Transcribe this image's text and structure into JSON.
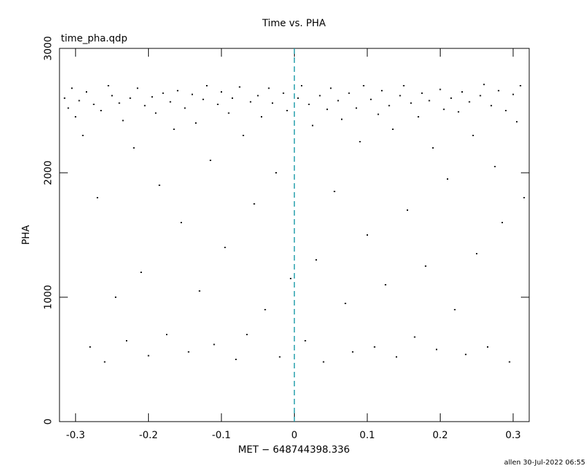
{
  "chart_data": {
    "type": "scatter",
    "title": "Time vs. PHA",
    "subtitle": "time_pha.qdp",
    "x_label": "MET − 648744398.336",
    "y_label": "PHA",
    "footer": "allen 30-Jul-2022 06:55",
    "color": "#000000",
    "vline": 0,
    "vline_color": "#1a9aa8",
    "xlim": [
      -0.322,
      0.322
    ],
    "ylim": [
      0,
      3000
    ],
    "xticks": [
      -0.3,
      -0.2,
      -0.1,
      0,
      0.1,
      0.2,
      0.3
    ],
    "yticks": [
      0,
      1000,
      2000,
      3000
    ],
    "x": [
      -0.315,
      -0.31,
      -0.305,
      -0.3,
      -0.295,
      -0.29,
      -0.285,
      -0.28,
      -0.275,
      -0.27,
      -0.265,
      -0.26,
      -0.255,
      -0.25,
      -0.245,
      -0.24,
      -0.235,
      -0.23,
      -0.225,
      -0.22,
      -0.215,
      -0.21,
      -0.205,
      -0.2,
      -0.195,
      -0.19,
      -0.185,
      -0.18,
      -0.175,
      -0.17,
      -0.165,
      -0.16,
      -0.155,
      -0.15,
      -0.145,
      -0.14,
      -0.135,
      -0.13,
      -0.125,
      -0.12,
      -0.115,
      -0.11,
      -0.105,
      -0.1,
      -0.095,
      -0.09,
      -0.085,
      -0.08,
      -0.075,
      -0.07,
      -0.065,
      -0.06,
      -0.055,
      -0.05,
      -0.045,
      -0.04,
      -0.035,
      -0.03,
      -0.025,
      -0.02,
      -0.015,
      -0.01,
      -0.005,
      0.005,
      0.01,
      0.015,
      0.02,
      0.025,
      0.03,
      0.035,
      0.04,
      0.045,
      0.05,
      0.055,
      0.06,
      0.065,
      0.07,
      0.075,
      0.08,
      0.085,
      0.09,
      0.095,
      0.1,
      0.105,
      0.11,
      0.115,
      0.12,
      0.125,
      0.13,
      0.135,
      0.14,
      0.145,
      0.15,
      0.155,
      0.16,
      0.165,
      0.17,
      0.175,
      0.18,
      0.185,
      0.19,
      0.195,
      0.2,
      0.205,
      0.21,
      0.215,
      0.22,
      0.225,
      0.23,
      0.235,
      0.24,
      0.245,
      0.25,
      0.255,
      0.26,
      0.265,
      0.27,
      0.275,
      0.28,
      0.285,
      0.29,
      0.295,
      0.3,
      0.305,
      0.31,
      0.315
    ],
    "values": [
      2600,
      2520,
      2680,
      2450,
      2580,
      2300,
      2650,
      600,
      2550,
      1800,
      2500,
      480,
      2700,
      2620,
      1000,
      2560,
      2420,
      650,
      2600,
      2200,
      2680,
      1200,
      2540,
      530,
      2610,
      2480,
      1900,
      2640,
      700,
      2570,
      2350,
      2660,
      1600,
      2520,
      560,
      2630,
      2400,
      1050,
      2590,
      2700,
      2100,
      620,
      2550,
      2650,
      1400,
      2480,
      2600,
      500,
      2690,
      2300,
      700,
      2570,
      1750,
      2620,
      2450,
      900,
      2680,
      2560,
      2000,
      520,
      2640,
      2500,
      1150,
      2600,
      2700,
      650,
      2550,
      2380,
      1300,
      2620,
      480,
      2510,
      2680,
      1850,
      2580,
      2430,
      950,
      2640,
      560,
      2520,
      2250,
      2700,
      1500,
      2590,
      600,
      2470,
      2660,
      1100,
      2540,
      2350,
      520,
      2620,
      2700,
      1700,
      2560,
      680,
      2450,
      2640,
      1250,
      2580,
      2200,
      580,
      2670,
      2510,
      1950,
      2600,
      900,
      2490,
      2650,
      540,
      2570,
      2300,
      1350,
      2620,
      2710,
      600,
      2540,
      2050,
      2660,
      1600,
      2500,
      480,
      2630,
      2410,
      2700,
      1800
    ]
  }
}
